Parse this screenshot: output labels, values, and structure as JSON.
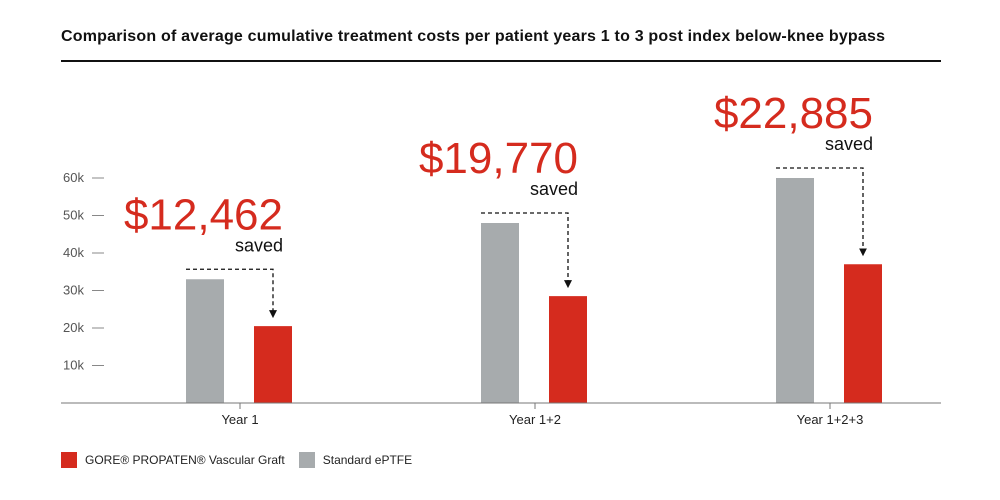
{
  "title": "Comparison of average cumulative treatment costs per patient years 1 to 3 post index below-knee bypass",
  "colors": {
    "gore": "#d52b1e",
    "standard": "#a7abad",
    "axis": "#777777",
    "text": "#111111"
  },
  "chart_data": {
    "type": "bar",
    "title": "Comparison of average cumulative treatment costs per patient years 1 to 3 post index below-knee bypass",
    "xlabel": "",
    "ylabel": "",
    "ylim": [
      0,
      60000
    ],
    "yticks": [
      {
        "value": 10000,
        "label": "10k"
      },
      {
        "value": 20000,
        "label": "20k"
      },
      {
        "value": 30000,
        "label": "30k"
      },
      {
        "value": 40000,
        "label": "40k"
      },
      {
        "value": 50000,
        "label": "50k"
      },
      {
        "value": 60000,
        "label": "60k"
      }
    ],
    "categories": [
      "Year 1",
      "Year 1+2",
      "Year 1+2+3"
    ],
    "series": [
      {
        "name": "Standard ePTFE",
        "color": "#a7abad",
        "values": [
          33000,
          48000,
          60000
        ]
      },
      {
        "name": "GORE® PROPATEN® Vascular Graft",
        "color": "#d52b1e",
        "values": [
          20500,
          28500,
          37000
        ]
      }
    ],
    "annotations": [
      {
        "category": "Year 1",
        "amount": "$12,462",
        "label": "saved"
      },
      {
        "category": "Year 1+2",
        "amount": "$19,770",
        "label": "saved"
      },
      {
        "category": "Year 1+2+3",
        "amount": "$22,885",
        "label": "saved"
      }
    ],
    "legend": [
      {
        "label": "GORE® PROPATEN® Vascular Graft",
        "color": "#d52b1e"
      },
      {
        "label": "Standard ePTFE",
        "color": "#a7abad"
      }
    ]
  }
}
